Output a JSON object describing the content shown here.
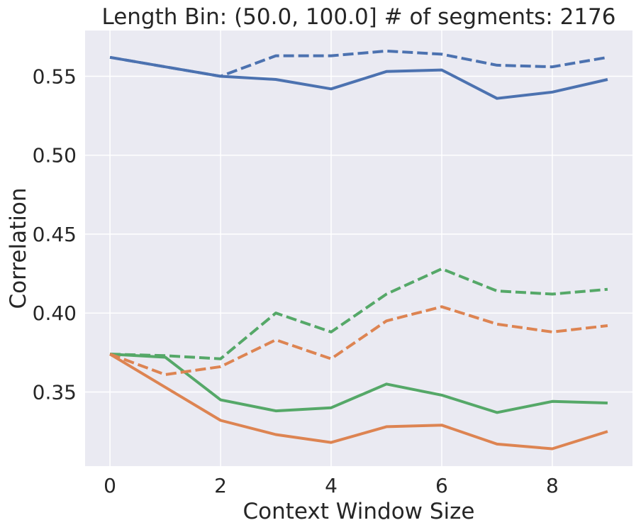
{
  "chart_data": {
    "type": "line",
    "title": "Length Bin: (50.0, 100.0] # of segments: 2176",
    "xlabel": "Context Window Size",
    "ylabel": "Correlation",
    "xlim": [
      -0.45,
      9.45
    ],
    "ylim": [
      0.303,
      0.579
    ],
    "xticks": [
      0,
      2,
      4,
      6,
      8
    ],
    "xtick_labels": [
      "0",
      "2",
      "4",
      "6",
      "8"
    ],
    "yticks": [
      0.35,
      0.4,
      0.45,
      0.5,
      0.55
    ],
    "ytick_labels": [
      "0.35",
      "0.40",
      "0.45",
      "0.50",
      "0.55"
    ],
    "grid": true,
    "background": "#eaeaf2",
    "grid_color": "#ffffff",
    "x": [
      0,
      1,
      2,
      3,
      4,
      5,
      6,
      7,
      8,
      9
    ],
    "series": [
      {
        "color": "#4c72b0",
        "style": "solid",
        "values": [
          0.562,
          0.556,
          0.55,
          0.548,
          0.542,
          0.553,
          0.554,
          0.536,
          0.54,
          0.548
        ]
      },
      {
        "color": "#4c72b0",
        "style": "dashed",
        "values": [
          0.562,
          0.556,
          0.55,
          0.563,
          0.563,
          0.566,
          0.564,
          0.557,
          0.556,
          0.562
        ]
      },
      {
        "color": "#55a868",
        "style": "solid",
        "values": [
          0.374,
          0.372,
          0.345,
          0.338,
          0.34,
          0.355,
          0.348,
          0.337,
          0.344,
          0.343
        ]
      },
      {
        "color": "#55a868",
        "style": "dashed",
        "values": [
          0.374,
          0.373,
          0.371,
          0.4,
          0.388,
          0.412,
          0.428,
          0.414,
          0.412,
          0.415
        ]
      },
      {
        "color": "#dd8452",
        "style": "solid",
        "values": [
          0.374,
          0.353,
          0.332,
          0.323,
          0.318,
          0.328,
          0.329,
          0.317,
          0.314,
          0.325
        ]
      },
      {
        "color": "#dd8452",
        "style": "dashed",
        "values": [
          0.374,
          0.361,
          0.366,
          0.383,
          0.371,
          0.395,
          0.404,
          0.393,
          0.388,
          0.392
        ]
      }
    ]
  }
}
